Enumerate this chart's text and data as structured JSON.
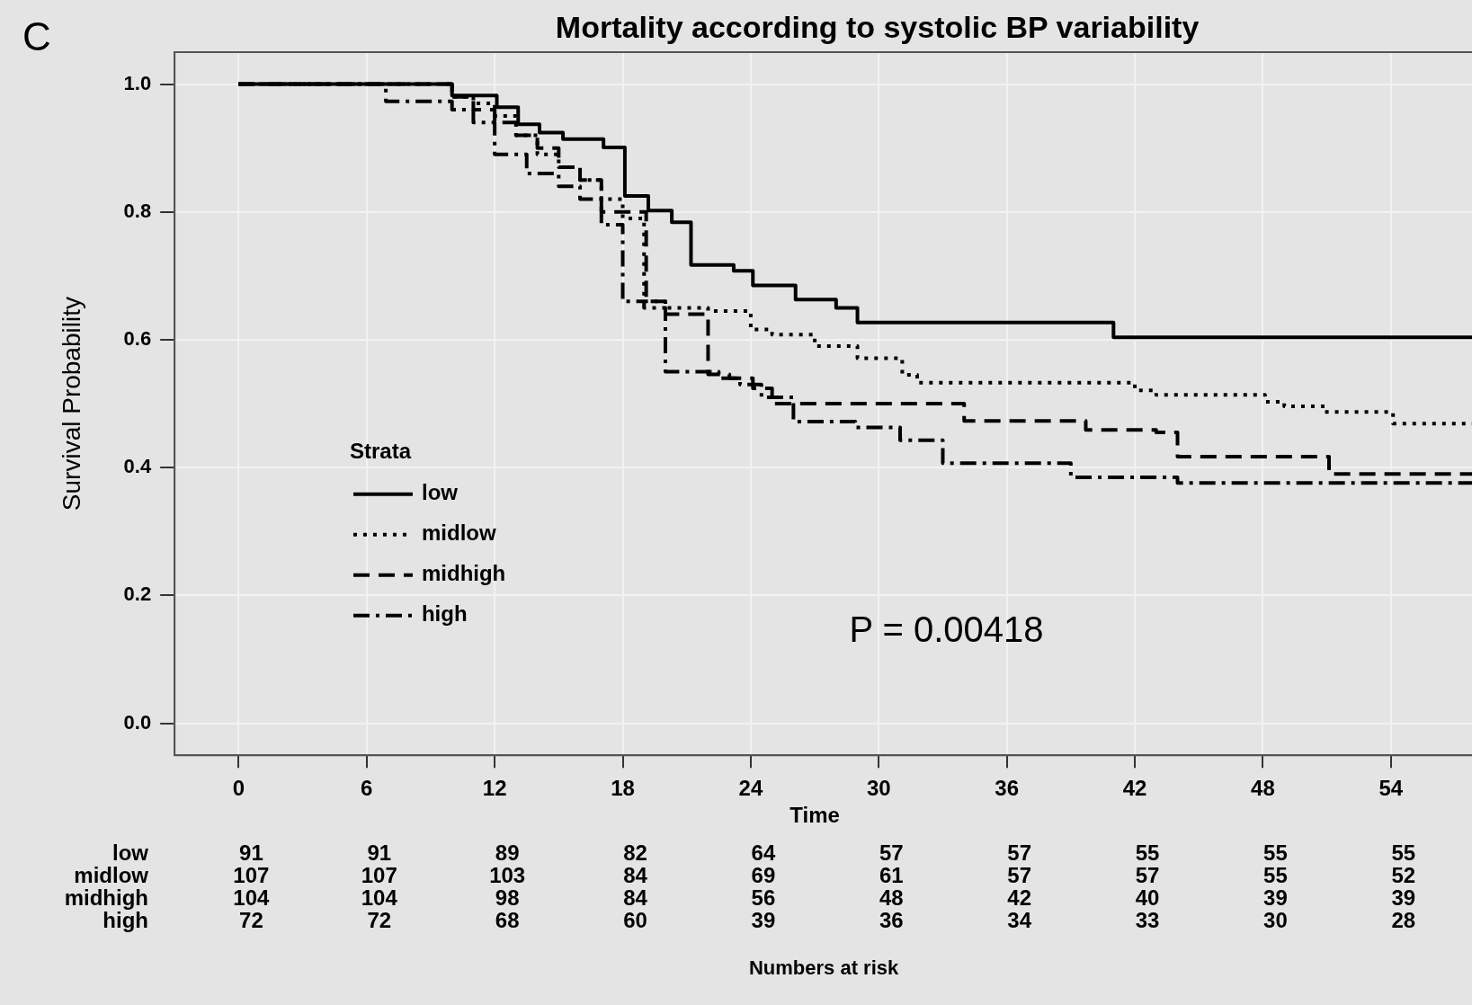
{
  "chart_data": {
    "type": "step",
    "title": "Mortality according to systolic BP variability",
    "xlabel": "Time",
    "ylabel": "Survival Probability",
    "legend_title": "Strata",
    "legend": "left",
    "grid": true,
    "xlim": [
      -3,
      57.8
    ],
    "xticks": [
      0,
      6,
      12,
      18,
      24,
      30,
      36,
      42,
      48,
      54
    ],
    "ylim": [
      -0.05,
      1.05
    ],
    "yticks": [
      {
        "value": 0,
        "label": "0.0"
      },
      {
        "value": 0.2,
        "label": "0.2"
      },
      {
        "value": 0.4,
        "label": "0.4"
      },
      {
        "value": 0.6,
        "label": "0.6"
      },
      {
        "value": 0.8,
        "label": "0.8"
      },
      {
        "value": 1,
        "label": "1.0"
      }
    ],
    "series": [
      {
        "name": "low",
        "color": "#000000",
        "line_style": "solid",
        "x": [
          0,
          10,
          12.1,
          13.1,
          14.1,
          15.2,
          17.1,
          18.1,
          19.2,
          20.3,
          21.2,
          23.2,
          24.1,
          26.1,
          28,
          29,
          41,
          57.8
        ],
        "values": [
          1,
          0.982,
          0.964,
          0.937,
          0.924,
          0.914,
          0.901,
          0.825,
          0.802,
          0.784,
          0.717,
          0.708,
          0.685,
          0.663,
          0.65,
          0.627,
          0.604,
          0.604
        ]
      },
      {
        "name": "midlow",
        "color": "#000000",
        "line_style": "dotted",
        "x": [
          0,
          10,
          11,
          12,
          13,
          14,
          15,
          16,
          17,
          18,
          19,
          20,
          22,
          24,
          25,
          27,
          29,
          31.1,
          31.8,
          42,
          43,
          48.1,
          49,
          50.9,
          54.1,
          57.8
        ],
        "values": [
          1,
          0.98,
          0.97,
          0.95,
          0.92,
          0.89,
          0.87,
          0.85,
          0.82,
          0.79,
          0.66,
          0.65,
          0.645,
          0.616,
          0.608,
          0.59,
          0.571,
          0.545,
          0.533,
          0.521,
          0.514,
          0.503,
          0.496,
          0.487,
          0.469,
          0.469
        ]
      },
      {
        "name": "midhigh",
        "color": "#000000",
        "line_style": "dashed",
        "x": [
          0,
          10,
          11,
          12,
          13,
          14,
          15,
          16,
          17,
          19.1,
          20,
          22,
          23,
          24.1,
          25,
          34,
          39.7,
          43,
          44,
          51.1,
          57.8
        ],
        "values": [
          1,
          0.98,
          0.96,
          0.94,
          0.92,
          0.9,
          0.87,
          0.85,
          0.8,
          0.66,
          0.64,
          0.546,
          0.54,
          0.524,
          0.5,
          0.473,
          0.459,
          0.455,
          0.417,
          0.39,
          0.39
        ]
      },
      {
        "name": "high",
        "color": "#000000",
        "line_style": "dashdot",
        "x": [
          0,
          6.9,
          10,
          11,
          12,
          13.5,
          15,
          16,
          17,
          18,
          19,
          20,
          22.5,
          23.5,
          24.5,
          26,
          28.9,
          31,
          33,
          39,
          44,
          57.8
        ],
        "values": [
          1,
          0.973,
          0.96,
          0.94,
          0.89,
          0.86,
          0.84,
          0.82,
          0.78,
          0.66,
          0.65,
          0.55,
          0.54,
          0.53,
          0.51,
          0.472,
          0.463,
          0.443,
          0.407,
          0.385,
          0.376,
          0.376
        ]
      }
    ],
    "annotations": [
      "C",
      "P = 0.00418",
      "Numbers at risk",
      "low 91 91 89 82 64 57 57 55 55 55",
      "midlow 107 107 103 84 69 61 57 57 55 52",
      "midhigh 104 104 98 84 56 48 42 40 39 39",
      "high 72 72 68 60 39 36 34 33 30 28"
    ]
  }
}
